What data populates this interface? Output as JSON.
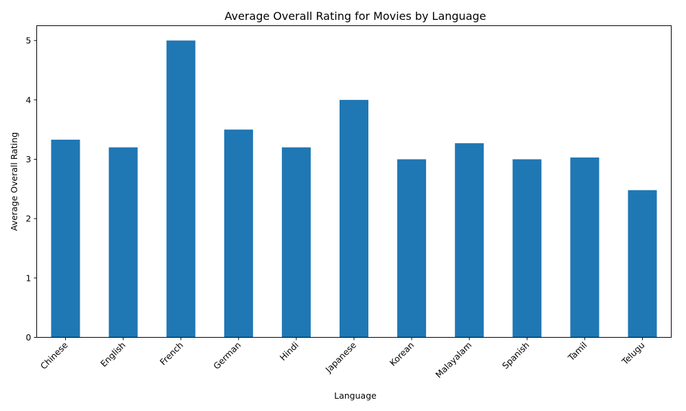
{
  "chart_data": {
    "type": "bar",
    "title": "Average Overall Rating for Movies by Language",
    "xlabel": "Language",
    "ylabel": "Average Overall Rating",
    "categories": [
      "Chinese",
      "English",
      "French",
      "German",
      "Hindi",
      "Japanese",
      "Korean",
      "Malayalam",
      "Spanish",
      "Tamil",
      "Telugu"
    ],
    "values": [
      3.33,
      3.2,
      5.0,
      3.5,
      3.2,
      4.0,
      3.0,
      3.27,
      3.0,
      3.03,
      2.48
    ],
    "ylim": [
      0,
      5.25
    ],
    "yticks": [
      0,
      1,
      2,
      3,
      4,
      5
    ],
    "bar_color": "#1f77b4",
    "grid": false,
    "legend": "none"
  }
}
